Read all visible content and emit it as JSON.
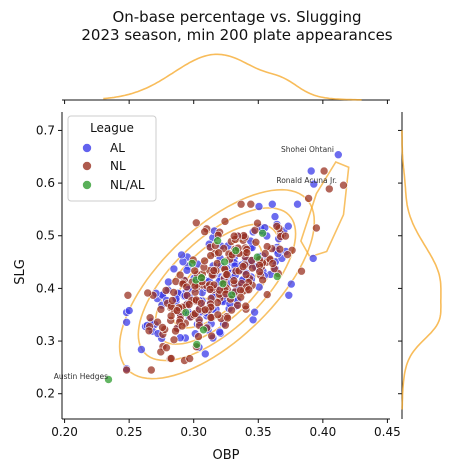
{
  "chart_data": {
    "type": "scatter",
    "title": [
      "On-base percentage vs. Slugging",
      "2023 season, min 200 plate appearances"
    ],
    "xlabel": "OBP",
    "ylabel": "SLG",
    "xlim": [
      0.198,
      0.452
    ],
    "ylim": [
      0.152,
      0.735
    ],
    "xticks": [
      "0.20",
      "0.25",
      "0.30",
      "0.35",
      "0.40",
      "0.45"
    ],
    "yticks": [
      "0.2",
      "0.3",
      "0.4",
      "0.5",
      "0.6",
      "0.7"
    ],
    "legend": {
      "title": "League",
      "placement": "upper-left",
      "entries": [
        "AL",
        "NL",
        "NL/AL"
      ]
    },
    "colors": {
      "AL": "#3b3bea",
      "NL": "#9a3222",
      "NL/AL": "#2f9c2f",
      "kde": "#f5a623"
    },
    "annotations": [
      {
        "text": "Shohei Ohtani",
        "x": 0.412,
        "y": 0.654
      },
      {
        "text": "Ronald Acuna Jr.",
        "x": 0.416,
        "y": 0.596
      },
      {
        "text": "Austin Hedges",
        "x": 0.234,
        "y": 0.227
      }
    ],
    "n_points": {
      "AL": 190,
      "NL": 210,
      "NL/AL": 14
    },
    "distribution": {
      "obp_mean": 0.318,
      "obp_sd": 0.029,
      "slg_mean": 0.408,
      "slg_sd": 0.069,
      "correlation": 0.66
    },
    "marginal": {
      "top": "OBP density (kde)",
      "right": "SLG density (kde)"
    },
    "grid": false
  }
}
